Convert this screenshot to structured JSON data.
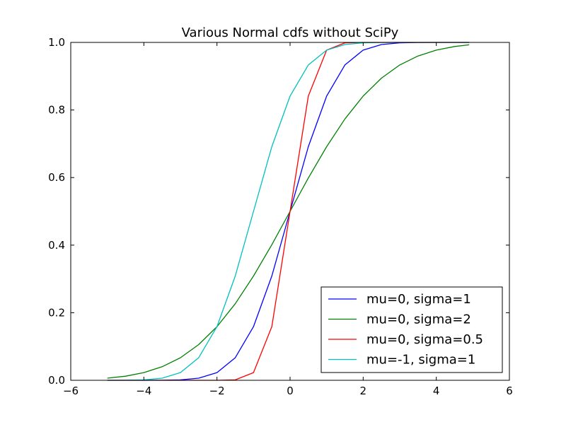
{
  "chart_data": {
    "type": "line",
    "title": "Various Normal cdfs without SciPy",
    "xlabel": "",
    "ylabel": "",
    "xlim": [
      -6,
      6
    ],
    "ylim": [
      0.0,
      1.0
    ],
    "x_ticks": [
      -6,
      -4,
      -2,
      0,
      2,
      4,
      6
    ],
    "x_tick_labels": [
      "−6",
      "−4",
      "−2",
      "0",
      "2",
      "4",
      "6"
    ],
    "y_ticks": [
      0.0,
      0.2,
      0.4,
      0.6,
      0.8,
      1.0
    ],
    "y_tick_labels": [
      "0.0",
      "0.2",
      "0.4",
      "0.6",
      "0.8",
      "1.0"
    ],
    "grid": false,
    "legend_position": "lower-right",
    "x": [
      -5.0,
      -4.5,
      -4.0,
      -3.5,
      -3.0,
      -2.5,
      -2.0,
      -1.5,
      -1.0,
      -0.5,
      0.0,
      0.5,
      1.0,
      1.5,
      2.0,
      2.5,
      3.0,
      3.5,
      4.0,
      4.5,
      4.9
    ],
    "series": [
      {
        "name": "mu=0, sigma=1",
        "color": "#0000ff",
        "values": [
          0.0,
          0.0,
          0.0,
          0.0002,
          0.0013,
          0.0062,
          0.0228,
          0.0668,
          0.1587,
          0.3085,
          0.5,
          0.6915,
          0.8413,
          0.9332,
          0.9772,
          0.9938,
          0.9987,
          0.9998,
          1.0,
          1.0,
          1.0
        ]
      },
      {
        "name": "mu=0, sigma=2",
        "color": "#008000",
        "values": [
          0.0062,
          0.0122,
          0.0228,
          0.0401,
          0.0668,
          0.1056,
          0.1587,
          0.2266,
          0.3085,
          0.4013,
          0.5,
          0.5987,
          0.6915,
          0.7734,
          0.8413,
          0.8944,
          0.9332,
          0.9599,
          0.9772,
          0.9878,
          0.9928
        ]
      },
      {
        "name": "mu=0, sigma=0.5",
        "color": "#ff0000",
        "values": [
          0.0,
          0.0,
          0.0,
          0.0,
          0.0,
          0.0,
          0.0,
          0.0013,
          0.0228,
          0.1587,
          0.5,
          0.8413,
          0.9772,
          0.9987,
          1.0,
          1.0,
          1.0,
          1.0,
          1.0,
          1.0,
          1.0
        ]
      },
      {
        "name": "mu=-1, sigma=1",
        "color": "#00bfbf",
        "values": [
          0.0,
          0.0002,
          0.0013,
          0.0062,
          0.0228,
          0.0668,
          0.1587,
          0.3085,
          0.5,
          0.6915,
          0.8413,
          0.9332,
          0.9772,
          0.9938,
          0.9987,
          0.9998,
          1.0,
          1.0,
          1.0,
          1.0,
          1.0
        ]
      }
    ]
  }
}
